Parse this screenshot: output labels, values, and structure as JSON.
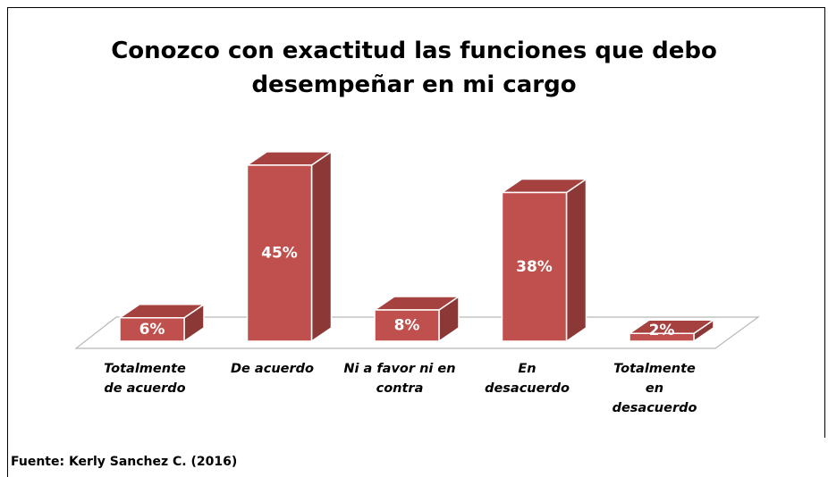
{
  "chart_data": {
    "type": "bar3d",
    "title": "Conozco con exactitud las funciones que debo desempeñar en mi cargo",
    "categories": [
      "Totalmente de acuerdo",
      "De acuerdo",
      "Ni a favor ni en contra",
      "En desacuerdo",
      "Totalmente en desacuerdo"
    ],
    "values": [
      6,
      45,
      8,
      38,
      2
    ],
    "value_labels": [
      "6%",
      "45%",
      "8%",
      "38%",
      "2%"
    ],
    "color": "#c0504d",
    "source": "Fuente: Kerly Sanchez C. (2016)"
  }
}
